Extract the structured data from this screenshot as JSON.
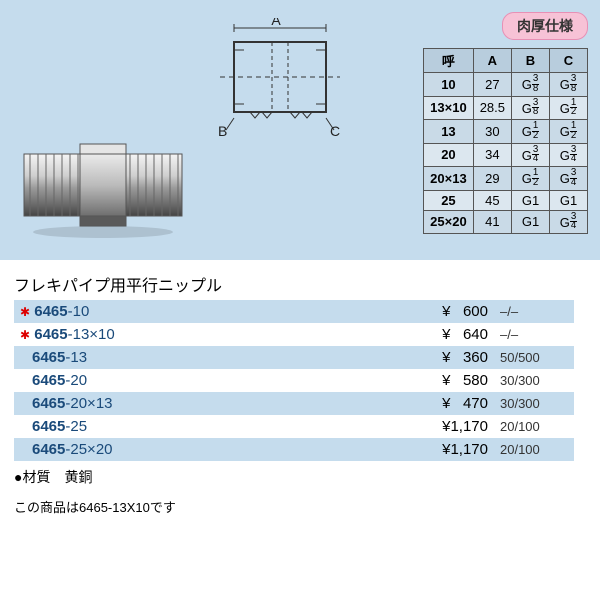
{
  "badge": "肉厚仕様",
  "diagram": {
    "labels": {
      "A": "A",
      "B": "B",
      "C": "C"
    }
  },
  "spec": {
    "headers": [
      "呼",
      "A",
      "B",
      "C"
    ],
    "rows": [
      {
        "call": "10",
        "A": "27",
        "B": "G⅜",
        "C": "G⅜"
      },
      {
        "call": "13×10",
        "A": "28.5",
        "B": "G⅜",
        "C": "G½"
      },
      {
        "call": "13",
        "A": "30",
        "B": "G½",
        "C": "G½"
      },
      {
        "call": "20",
        "A": "34",
        "B": "G¾",
        "C": "G¾"
      },
      {
        "call": "20×13",
        "A": "29",
        "B": "G½",
        "C": "G¾"
      },
      {
        "call": "25",
        "A": "45",
        "B": "G1",
        "C": "G1"
      },
      {
        "call": "25×20",
        "A": "41",
        "B": "G1",
        "C": "G¾"
      }
    ]
  },
  "section_title": "フレキパイプ用平行ニップル",
  "price_rows": [
    {
      "star": true,
      "prefix": "6465",
      "suffix": "-10",
      "price": "¥   600",
      "pack": "–/–"
    },
    {
      "star": true,
      "prefix": "6465",
      "suffix": "-13×10",
      "price": "¥   640",
      "pack": "–/–"
    },
    {
      "star": false,
      "prefix": "6465",
      "suffix": "-13",
      "price": "¥   360",
      "pack": "50/500"
    },
    {
      "star": false,
      "prefix": "6465",
      "suffix": "-20",
      "price": "¥   580",
      "pack": "30/300"
    },
    {
      "star": false,
      "prefix": "6465",
      "suffix": "-20×13",
      "price": "¥   470",
      "pack": "30/300"
    },
    {
      "star": false,
      "prefix": "6465",
      "suffix": "-25",
      "price": "¥1,170",
      "pack": "20/100"
    },
    {
      "star": false,
      "prefix": "6465",
      "suffix": "-25×20",
      "price": "¥1,170",
      "pack": "20/100"
    }
  ],
  "material_label": "●材質　黄銅",
  "note": "この商品は6465-13X10です"
}
